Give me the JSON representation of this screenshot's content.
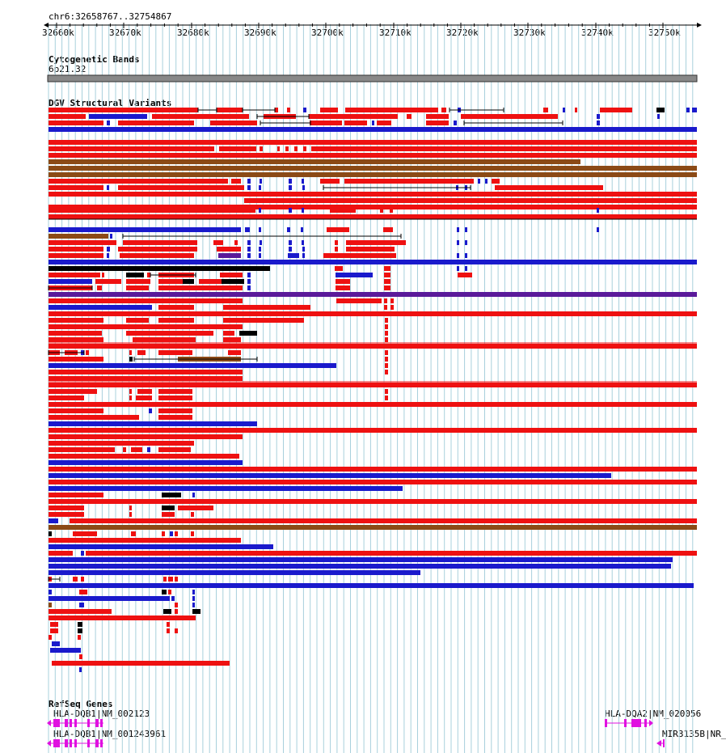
{
  "region": {
    "label": "chr6:32658767..32754867"
  },
  "ruler": {
    "ticks": [
      "32660k",
      "32670k",
      "32680k",
      "32690k",
      "32700k",
      "32710k",
      "32720k",
      "32730k",
      "32740k",
      "32750k"
    ]
  },
  "tracks": {
    "cytoband": {
      "title": "Cytogenetic Bands",
      "band": "6p21.32"
    },
    "dgv": {
      "title": "DGV Structural Variants"
    },
    "refseq": {
      "title": "RefSeq Genes",
      "genes": [
        {
          "label": "HLA-DQB1|NM_002123"
        },
        {
          "label": "HLA-DQB1|NM_001243961"
        },
        {
          "label": "HLA-DQA2|NM_020056"
        },
        {
          "label": "MIR3135B|NR_"
        }
      ]
    }
  },
  "colors": {
    "gain": "#ee1111",
    "loss": "#1a1acc",
    "complex": "#8b4a16",
    "other": "#000000",
    "purple": "#5a1a9a",
    "gene": "#e010e0",
    "grid": "#a8d0dc",
    "band": "#888888"
  }
}
